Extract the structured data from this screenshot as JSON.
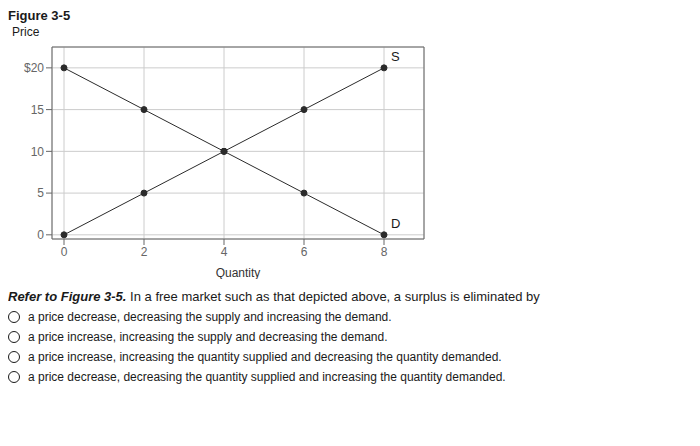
{
  "chart_data": {
    "type": "line",
    "title": "Figure 3-5",
    "x_label": "Quantity",
    "y_label": "Price",
    "series": [
      {
        "name": "S",
        "x": [
          0,
          2,
          4,
          6,
          8
        ],
        "values": [
          0,
          5,
          10,
          15,
          20
        ],
        "color": "#2b2b2b",
        "marker": "circle"
      },
      {
        "name": "D",
        "x": [
          0,
          2,
          4,
          6,
          8
        ],
        "values": [
          20,
          15,
          10,
          5,
          0
        ],
        "color": "#2b2b2b",
        "marker": "circle"
      }
    ],
    "xlim": [
      -0.3,
      9.0
    ],
    "ylim": [
      -0.5,
      22.5
    ],
    "xticks": [
      0,
      2,
      4,
      6,
      8
    ],
    "yticks": [
      0,
      5,
      10,
      15,
      {
        "value": 20,
        "label": "$20"
      }
    ],
    "grid": true,
    "question_bold": "Refer to Figure 3-5.",
    "question": " In a free market such as that depicted above, a surplus is eliminated by",
    "options": [
      "a price decrease, decreasing the supply and increasing the demand.",
      "a price increase, increasing the supply and decreasing the demand.",
      "a price increase, increasing the quantity supplied and decreasing the quantity demanded.",
      "a price decrease, decreasing the quantity supplied and increasing the quantity demanded."
    ]
  }
}
